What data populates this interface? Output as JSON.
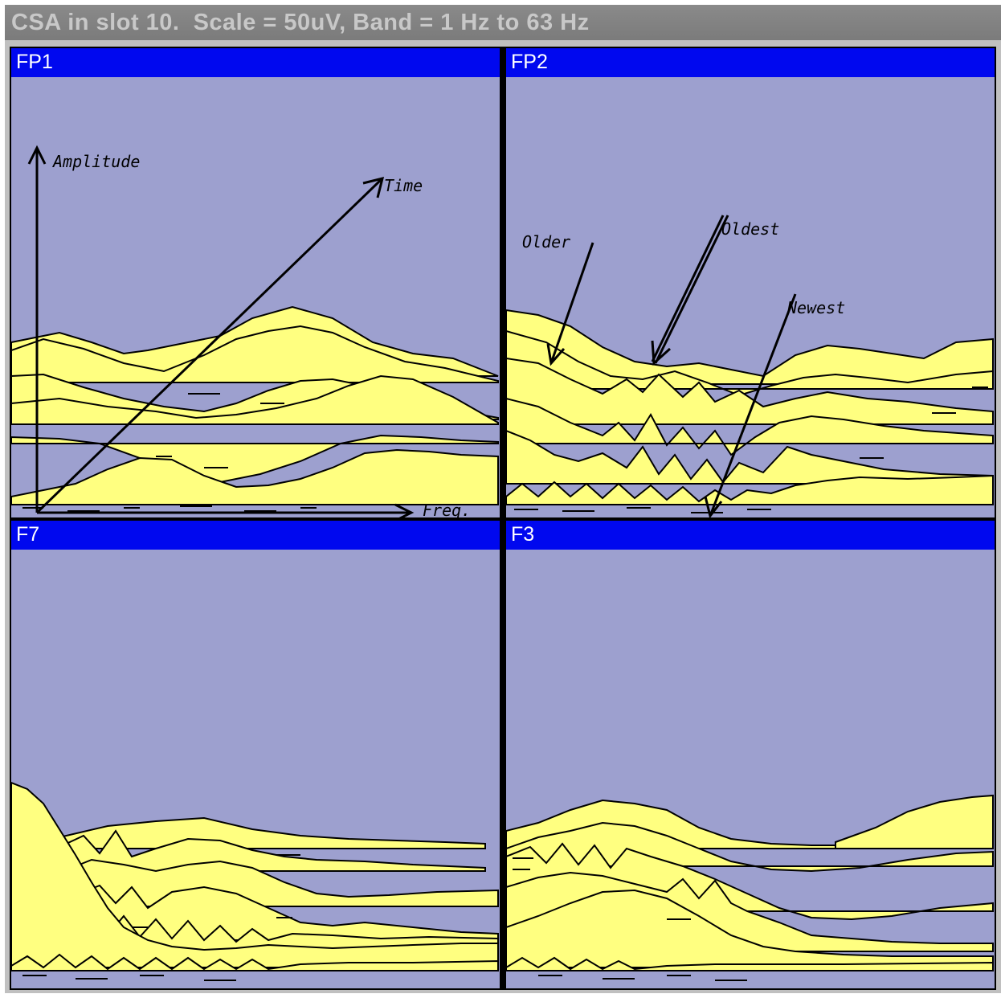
{
  "window": {
    "title": "CSA in slot 10.  Scale = 50uV, Band = 1 Hz to 63 Hz"
  },
  "panels": [
    {
      "label": "FP1"
    },
    {
      "label": "FP2"
    },
    {
      "label": "F7"
    },
    {
      "label": "F3"
    }
  ],
  "annotations": {
    "amplitude": "Amplitude",
    "time": "Time",
    "freq": "Freq.",
    "older": "Older",
    "oldest": "Oldest",
    "newest": "Newest"
  },
  "colors": {
    "background": "#9da0cf",
    "trace_fill": "#ffff80",
    "header": "#0008ef",
    "line": "#000000"
  }
}
